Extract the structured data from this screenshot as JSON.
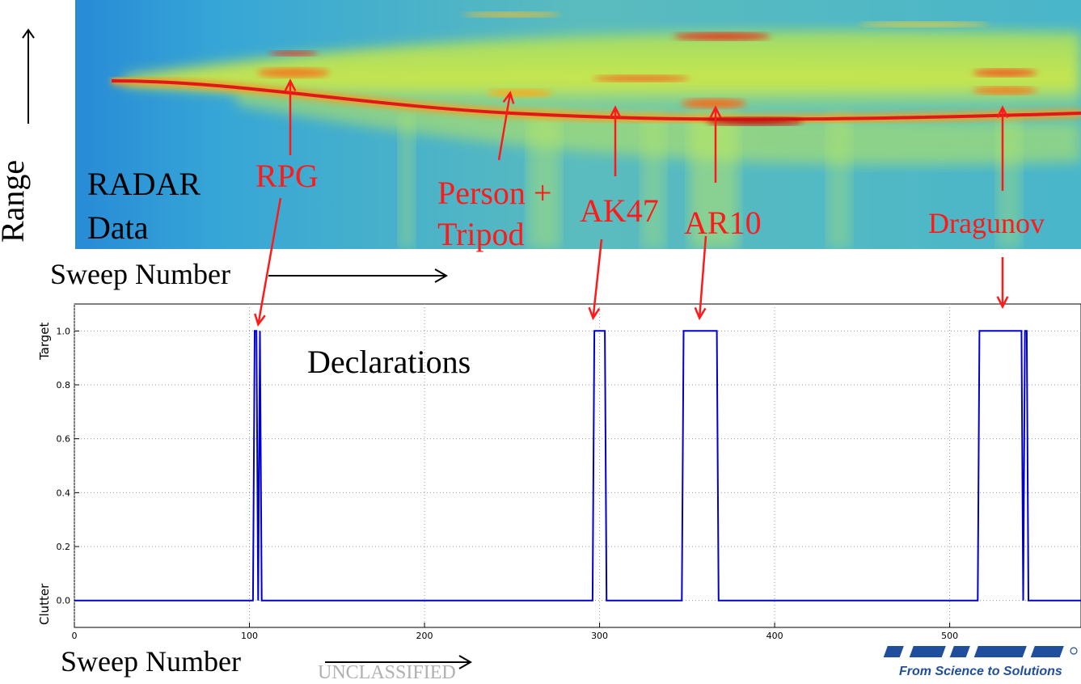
{
  "radar_panel": {
    "title_line1": "RADAR",
    "title_line2": "Data",
    "y_axis_label": "Range",
    "x_axis_label": "Sweep Number",
    "targets": [
      {
        "label_lines": [
          "RPG"
        ],
        "sweep": 122
      },
      {
        "label_lines": [
          "Person +",
          "Tripod"
        ],
        "sweep": 248
      },
      {
        "label_lines": [
          "AK47"
        ],
        "sweep": 310
      },
      {
        "label_lines": [
          "AR10"
        ],
        "sweep": 362
      },
      {
        "label_lines": [
          "Dragunov"
        ],
        "sweep": 530
      }
    ],
    "colors": {
      "background": "#2a9be0",
      "band": "#c8e83c",
      "hot": "#e8141a"
    }
  },
  "declarations_label": "Declarations",
  "chart_data": {
    "type": "line",
    "title": "",
    "xlabel": "Sweep Number",
    "ylabel_top": "Target",
    "ylabel_bottom": "Clutter",
    "xlim": [
      0,
      575
    ],
    "ylim": [
      -0.1,
      1.1
    ],
    "x_ticks": [
      0,
      100,
      200,
      300,
      400,
      500
    ],
    "y_ticks": [
      0.0,
      0.2,
      0.4,
      0.6,
      0.8,
      1.0
    ],
    "grid": true,
    "series": [
      {
        "color": "#0000cc",
        "x": [
          0,
          102,
          103,
          104,
          105,
          106,
          107,
          296,
          297,
          303,
          304,
          347,
          348,
          367,
          368,
          516,
          517,
          541,
          542,
          543,
          544,
          545,
          575
        ],
        "y": [
          0,
          0,
          1,
          1,
          0,
          1,
          0,
          0,
          1,
          1,
          0,
          0,
          1,
          1,
          0,
          0,
          1,
          1,
          0,
          1,
          1,
          0,
          0
        ]
      }
    ],
    "arrow_targets": [
      {
        "label": "RPG",
        "sweep": 105
      },
      {
        "label": "AK47",
        "sweep": 300
      },
      {
        "label": "AR10",
        "sweep": 358
      },
      {
        "label": "Dragunov",
        "sweep": 530
      }
    ]
  },
  "footer": {
    "classification": "UNCLASSIFIED",
    "logo_tagline": "From Science to Solutions",
    "logo_color": "#1f4e9c"
  }
}
